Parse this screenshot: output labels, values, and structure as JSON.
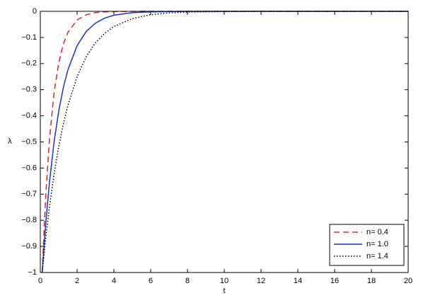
{
  "chart_data": {
    "type": "line",
    "x_label": "t",
    "y_label": "λ",
    "x": [
      0.1,
      0.3,
      0.5,
      0.75,
      1,
      1.25,
      1.5,
      2,
      2.5,
      3,
      3.5,
      4,
      5,
      6,
      7,
      8,
      10,
      12,
      15,
      20
    ],
    "series": [
      {
        "name": "n= 0.4",
        "color": "#e8202a",
        "style": "dashed",
        "values": [
          -1,
          -0.698,
          -0.487,
          -0.31,
          -0.198,
          -0.126,
          -0.08,
          -0.033,
          -0.013,
          -0.005,
          -0.002,
          -0.001,
          0,
          0,
          0,
          0,
          0,
          0,
          0,
          0
        ]
      },
      {
        "name": "n= 1.0",
        "color": "#1c2fd6",
        "style": "solid",
        "values": [
          -1,
          -0.807,
          -0.652,
          -0.499,
          -0.382,
          -0.292,
          -0.224,
          -0.131,
          -0.077,
          -0.045,
          -0.026,
          -0.015,
          -0.005,
          -0.002,
          -0.001,
          0,
          0,
          0,
          0,
          0
        ]
      },
      {
        "name": "n= 1.4",
        "color": "#000000",
        "style": "dotted",
        "values": [
          -1,
          -0.864,
          -0.747,
          -0.622,
          -0.518,
          -0.432,
          -0.36,
          -0.25,
          -0.173,
          -0.12,
          -0.084,
          -0.058,
          -0.028,
          -0.013,
          -0.006,
          -0.003,
          -0.001,
          0,
          0,
          0
        ]
      }
    ],
    "xlim": [
      0,
      20
    ],
    "ylim": [
      -1,
      0
    ],
    "xticks": [
      0,
      2,
      4,
      6,
      8,
      10,
      12,
      14,
      16,
      18,
      20
    ],
    "yticks": [
      {
        "value": -1,
        "label": "−1"
      },
      {
        "value": -0.9,
        "label": "−0.9"
      },
      {
        "value": -0.8,
        "label": "−0.8"
      },
      {
        "value": -0.7,
        "label": "−0.7"
      },
      {
        "value": -0.6,
        "label": "−0.6"
      },
      {
        "value": -0.5,
        "label": "−0.5"
      },
      {
        "value": -0.4,
        "label": "−0.4"
      },
      {
        "value": -0.3,
        "label": "−0.3"
      },
      {
        "value": -0.2,
        "label": "−0.2"
      },
      {
        "value": -0.1,
        "label": "−0.1"
      },
      0
    ],
    "grid": false,
    "legend": "lower right"
  }
}
